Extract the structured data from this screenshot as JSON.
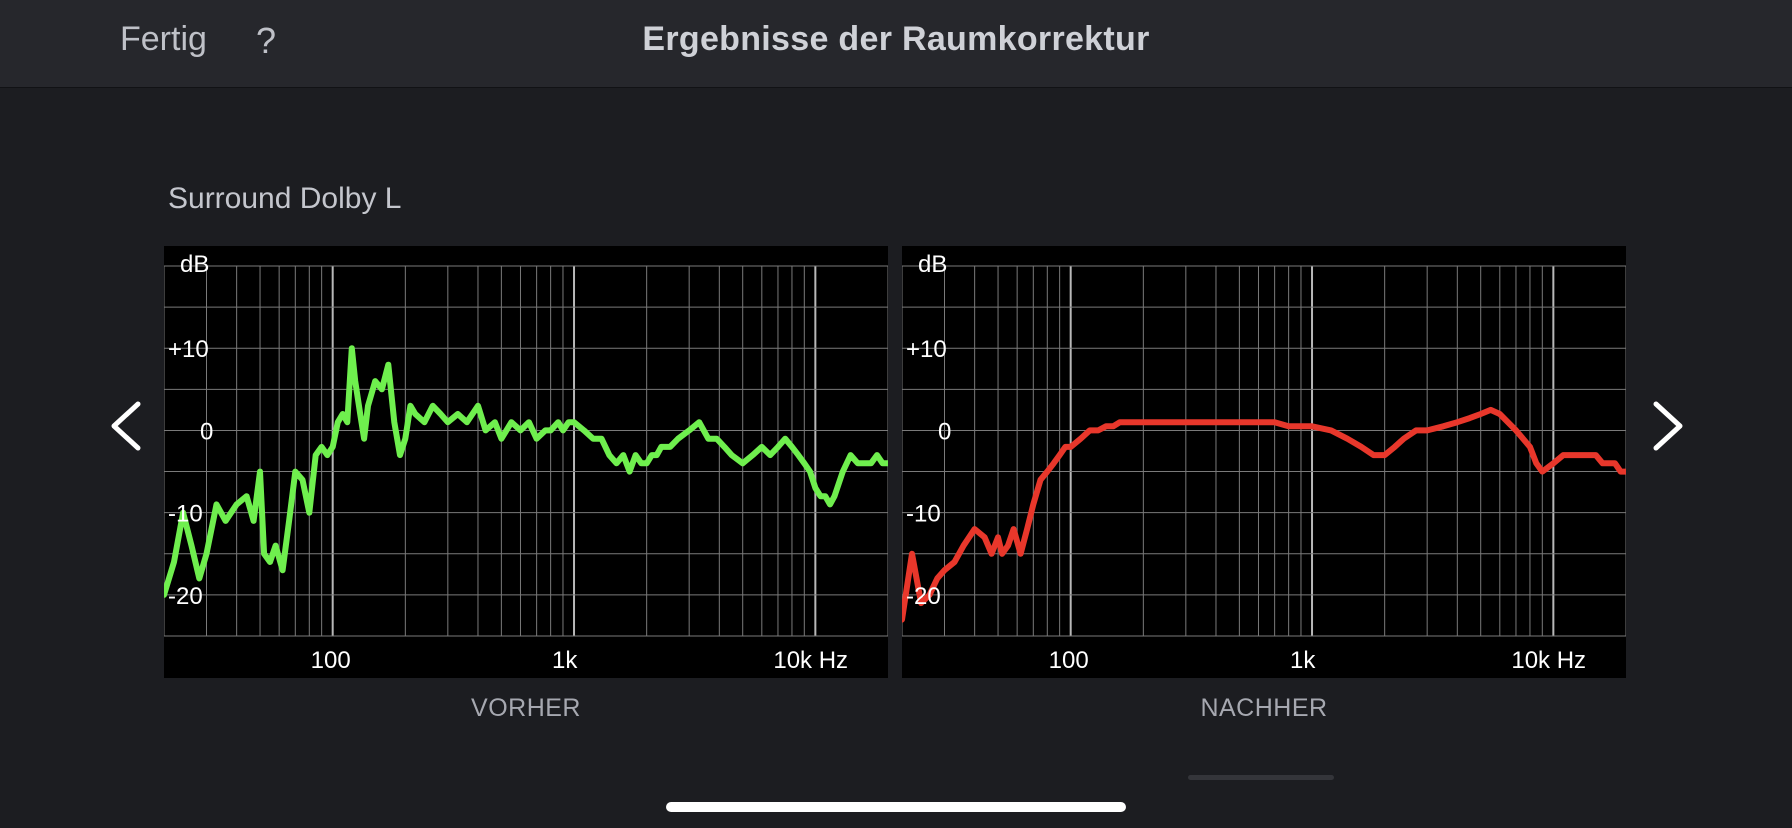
{
  "header": {
    "done_label": "Fertig",
    "help_label": "?",
    "title": "Ergebnisse der Raumkorrektur"
  },
  "speaker": {
    "name": "Surround Dolby L"
  },
  "colors": {
    "before_curve": "#6fef4e",
    "after_curve": "#e8372b",
    "grid": "#7a7a7a"
  },
  "chart_data": [
    {
      "type": "line",
      "caption": "VORHER",
      "ylabel": "dB",
      "xscale": "log",
      "xlim": [
        20,
        20000
      ],
      "ylim": [
        -25,
        20
      ],
      "y_ticks": [
        {
          "value": 10,
          "label": "+10"
        },
        {
          "value": 0,
          "label": "0"
        },
        {
          "value": -10,
          "label": "-10"
        },
        {
          "value": -20,
          "label": "-20"
        }
      ],
      "x_ticks": [
        {
          "value": 100,
          "label": "100"
        },
        {
          "value": 1000,
          "label": "1k"
        },
        {
          "value": 10000,
          "label": "10k Hz"
        }
      ],
      "series": [
        {
          "color": "#6fef4e",
          "x": [
            20,
            22,
            24,
            26,
            28,
            30,
            33,
            36,
            40,
            44,
            47,
            50,
            52,
            55,
            58,
            62,
            66,
            70,
            75,
            80,
            85,
            90,
            95,
            100,
            105,
            110,
            115,
            120,
            124,
            130,
            135,
            140,
            150,
            160,
            170,
            180,
            190,
            200,
            210,
            220,
            240,
            260,
            280,
            300,
            330,
            360,
            400,
            430,
            470,
            500,
            550,
            600,
            650,
            700,
            760,
            800,
            860,
            900,
            950,
            1000,
            1100,
            1200,
            1300,
            1400,
            1500,
            1600,
            1700,
            1800,
            1900,
            2000,
            2100,
            2200,
            2300,
            2500,
            2700,
            3000,
            3300,
            3600,
            3900,
            4200,
            4500,
            5000,
            5500,
            6000,
            6500,
            7000,
            7500,
            8000,
            8500,
            9000,
            9500,
            10000,
            10500,
            11000,
            11500,
            12000,
            13000,
            14000,
            15000,
            16000,
            17000,
            18000,
            19000,
            20000
          ],
          "y": [
            -20,
            -16,
            -10,
            -14,
            -18,
            -15,
            -9,
            -11,
            -9,
            -8,
            -11,
            -5,
            -15,
            -16,
            -14,
            -17,
            -11,
            -5,
            -6,
            -10,
            -3,
            -2,
            -3,
            -2,
            1,
            2,
            1,
            10,
            6,
            2,
            -1,
            3,
            6,
            5,
            8,
            1,
            -3,
            -1,
            3,
            2,
            1,
            3,
            2,
            1,
            2,
            1,
            3,
            0,
            1,
            -1,
            1,
            0,
            1,
            -1,
            0,
            0,
            1,
            0,
            1,
            1,
            0,
            -1,
            -1,
            -3,
            -4,
            -3,
            -5,
            -3,
            -4,
            -4,
            -3,
            -3,
            -2,
            -2,
            -1,
            0,
            1,
            -1,
            -1,
            -2,
            -3,
            -4,
            -3,
            -2,
            -3,
            -2,
            -1,
            -2,
            -3,
            -4,
            -5,
            -7,
            -8,
            -8,
            -9,
            -8,
            -5,
            -3,
            -4,
            -4,
            -4,
            -3,
            -4,
            -4
          ]
        }
      ]
    },
    {
      "type": "line",
      "caption": "NACHHER",
      "ylabel": "dB",
      "xscale": "log",
      "xlim": [
        20,
        20000
      ],
      "ylim": [
        -25,
        20
      ],
      "y_ticks": [
        {
          "value": 10,
          "label": "+10"
        },
        {
          "value": 0,
          "label": "0"
        },
        {
          "value": -10,
          "label": "-10"
        },
        {
          "value": -20,
          "label": "-20"
        }
      ],
      "x_ticks": [
        {
          "value": 100,
          "label": "100"
        },
        {
          "value": 1000,
          "label": "1k"
        },
        {
          "value": 10000,
          "label": "10k Hz"
        }
      ],
      "series": [
        {
          "color": "#e8372b",
          "x": [
            20,
            22,
            24,
            26,
            28,
            30,
            33,
            36,
            40,
            44,
            47,
            50,
            52,
            55,
            58,
            62,
            66,
            70,
            75,
            80,
            85,
            90,
            95,
            100,
            110,
            120,
            130,
            140,
            150,
            160,
            170,
            180,
            200,
            220,
            250,
            300,
            350,
            400,
            500,
            600,
            700,
            800,
            900,
            1000,
            1200,
            1400,
            1600,
            1800,
            2000,
            2200,
            2400,
            2700,
            3000,
            3500,
            4000,
            4500,
            5000,
            5500,
            6000,
            7000,
            8000,
            8500,
            9000,
            10000,
            11000,
            12000,
            13000,
            14000,
            15000,
            16000,
            17000,
            18000,
            19000,
            20000
          ],
          "y": [
            -23,
            -15,
            -21,
            -20,
            -18,
            -17,
            -16,
            -14,
            -12,
            -13,
            -15,
            -13,
            -15,
            -14,
            -12,
            -15,
            -12,
            -9,
            -6,
            -5,
            -4,
            -3,
            -2,
            -2,
            -1,
            0,
            0,
            0.5,
            0.5,
            1,
            1,
            1,
            1,
            1,
            1,
            1,
            1,
            1,
            1,
            1,
            1,
            0.5,
            0.5,
            0.5,
            0,
            -1,
            -2,
            -3,
            -3,
            -2,
            -1,
            0,
            0,
            0.5,
            1,
            1.5,
            2,
            2.5,
            2,
            0,
            -2,
            -4,
            -5,
            -4,
            -3,
            -3,
            -3,
            -3,
            -3,
            -4,
            -4,
            -4,
            -5,
            -5
          ]
        }
      ]
    }
  ]
}
